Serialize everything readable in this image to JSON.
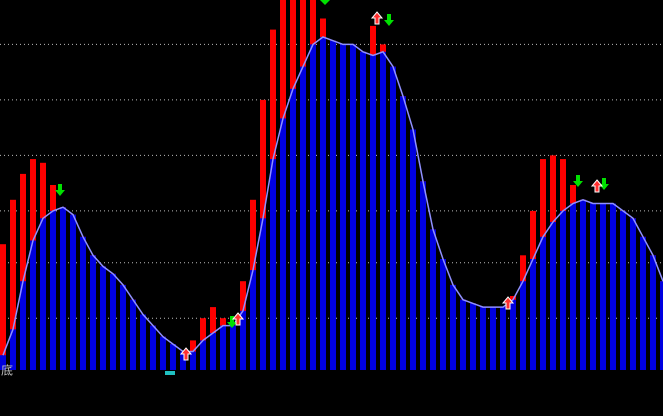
{
  "chart_data": {
    "type": "bar",
    "note_label": "底",
    "categories": [
      null,
      null,
      null,
      null,
      null,
      null,
      null,
      null,
      null,
      null,
      null,
      null,
      null,
      null,
      null,
      null,
      null,
      null,
      null,
      null,
      null,
      null,
      null,
      null,
      null,
      null,
      null,
      null,
      null,
      null,
      null,
      null,
      null,
      null,
      null,
      null,
      null,
      null,
      null,
      null,
      null,
      null,
      null,
      null,
      null,
      null,
      null,
      null,
      null,
      null,
      null,
      null,
      null,
      null,
      null,
      null,
      null,
      null,
      null,
      null,
      null,
      null,
      null,
      null,
      null,
      null,
      null
    ],
    "series": [
      {
        "name": "red",
        "color": "#ff0000",
        "values": [
          34,
          46,
          53,
          57,
          56,
          50,
          44,
          42,
          36,
          31,
          28,
          26,
          23,
          19,
          15,
          12,
          9,
          7,
          5,
          8,
          14,
          17,
          14,
          12,
          24,
          46,
          73,
          92,
          100,
          100,
          100,
          100,
          95,
          89,
          88,
          88,
          86,
          93,
          88,
          82,
          74,
          65,
          51,
          38,
          30,
          23,
          19,
          18,
          17,
          17,
          17,
          20,
          31,
          43,
          57,
          58,
          57,
          50,
          46,
          45,
          45,
          45,
          43,
          41,
          36,
          31,
          24
        ]
      },
      {
        "name": "blue",
        "color": "#0000e0",
        "values": [
          4,
          11,
          24,
          35,
          41,
          43,
          44,
          42,
          36,
          31,
          28,
          26,
          23,
          19,
          15,
          12,
          9,
          7,
          5,
          5,
          8,
          10,
          12,
          12,
          16,
          27,
          41,
          57,
          68,
          76,
          82,
          88,
          90,
          89,
          88,
          88,
          86,
          85,
          86,
          82,
          74,
          65,
          51,
          38,
          30,
          23,
          19,
          18,
          17,
          17,
          17,
          19,
          24,
          30,
          36,
          40,
          43,
          45,
          46,
          45,
          45,
          45,
          43,
          41,
          36,
          31,
          24
        ]
      }
    ],
    "ylim": [
      0,
      100
    ],
    "yticks": [
      14,
      29,
      43,
      58,
      73,
      88
    ],
    "grid": true
  }
}
